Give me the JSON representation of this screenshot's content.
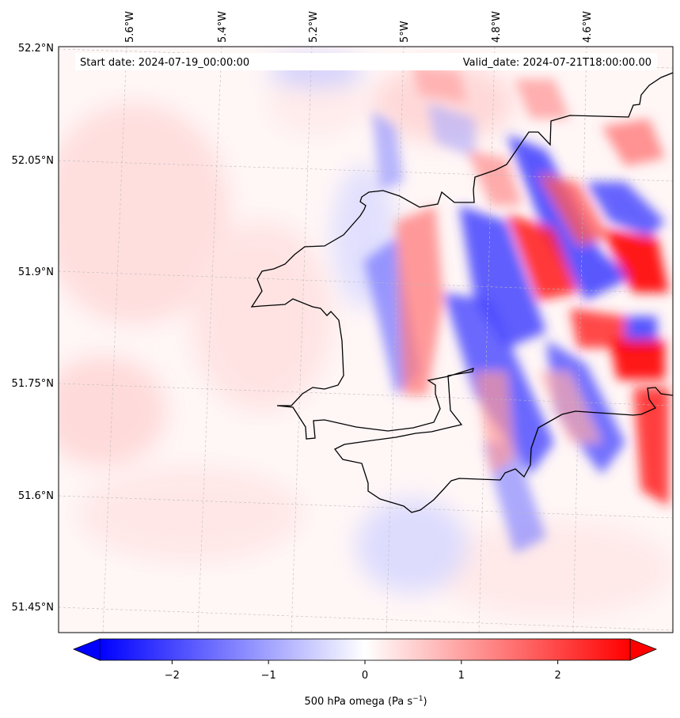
{
  "map": {
    "header_left": "Start date: 2024-07-19_00:00:00",
    "header_right": "Valid_date: 2024-07-21T18:00:00.00",
    "lat_labels": [
      "52.2°N",
      "52.05°N",
      "51.9°N",
      "51.75°N",
      "51.6°N",
      "51.45°N"
    ],
    "lon_labels": [
      "5.6°W",
      "5.4°W",
      "5.2°W",
      "5°W",
      "4.8°W",
      "4.6°W"
    ],
    "gridlines": true,
    "coastline_color": "#000000"
  },
  "colorbar": {
    "ticks": [
      "−2",
      "−1",
      "0",
      "1",
      "2"
    ],
    "min": -2.75,
    "max": 2.75,
    "label_main": "500 hPa omega (Pa s",
    "label_sup": "−1",
    "label_end": ")",
    "colors": {
      "negative": "#0000ff",
      "zero": "#ffffff",
      "positive": "#ff0000"
    },
    "extend": "both"
  }
}
